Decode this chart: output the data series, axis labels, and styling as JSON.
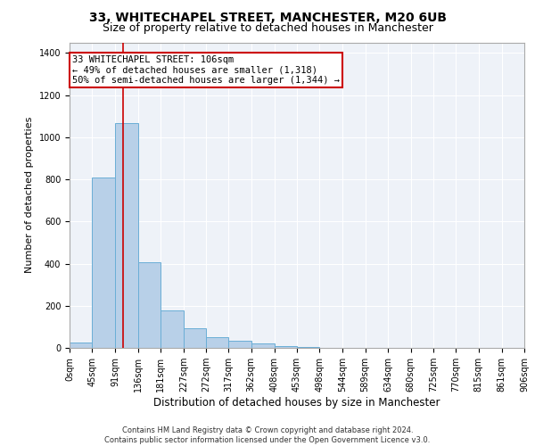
{
  "title": "33, WHITECHAPEL STREET, MANCHESTER, M20 6UB",
  "subtitle": "Size of property relative to detached houses in Manchester",
  "xlabel": "Distribution of detached houses by size in Manchester",
  "ylabel": "Number of detached properties",
  "bar_heights": [
    25,
    810,
    1065,
    405,
    178,
    95,
    50,
    35,
    20,
    10,
    5,
    0,
    0,
    0,
    0,
    0,
    0,
    0,
    0,
    0
  ],
  "bin_edges": [
    0,
    45,
    91,
    136,
    181,
    227,
    272,
    317,
    362,
    408,
    453,
    498,
    544,
    589,
    634,
    680,
    725,
    770,
    815,
    861,
    906
  ],
  "bar_color": "#b8d0e8",
  "bar_edgecolor": "#6aaed6",
  "bar_linewidth": 0.7,
  "property_size": 106,
  "property_line_color": "#cc0000",
  "ylim": [
    0,
    1450
  ],
  "yticks": [
    0,
    200,
    400,
    600,
    800,
    1000,
    1200,
    1400
  ],
  "annotation_text": "33 WHITECHAPEL STREET: 106sqm\n← 49% of detached houses are smaller (1,318)\n50% of semi-detached houses are larger (1,344) →",
  "annotation_box_color": "#cc0000",
  "annotation_fontsize": 7.5,
  "background_color": "#eef2f8",
  "grid_color": "#ffffff",
  "footer_text": "Contains HM Land Registry data © Crown copyright and database right 2024.\nContains public sector information licensed under the Open Government Licence v3.0.",
  "title_fontsize": 10,
  "subtitle_fontsize": 9,
  "xlabel_fontsize": 8.5,
  "ylabel_fontsize": 8,
  "tick_fontsize": 7
}
